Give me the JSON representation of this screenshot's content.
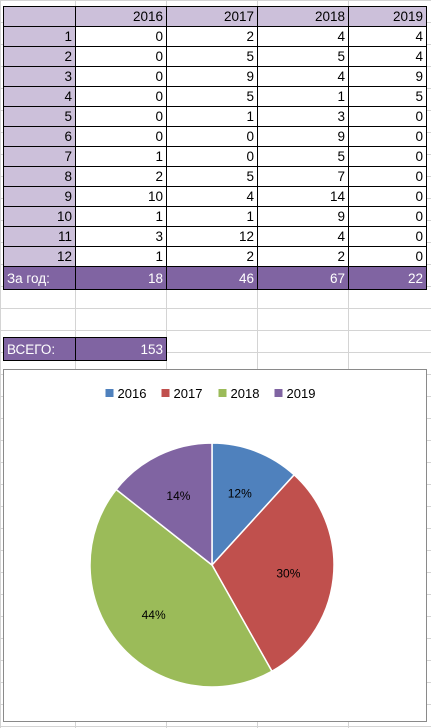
{
  "table": {
    "years": [
      "2016",
      "2017",
      "2018",
      "2019"
    ],
    "rows": [
      {
        "month": "1",
        "values": [
          "0",
          "2",
          "4",
          "4"
        ]
      },
      {
        "month": "2",
        "values": [
          "0",
          "5",
          "5",
          "4"
        ]
      },
      {
        "month": "3",
        "values": [
          "0",
          "9",
          "4",
          "9"
        ]
      },
      {
        "month": "4",
        "values": [
          "0",
          "5",
          "1",
          "5"
        ]
      },
      {
        "month": "5",
        "values": [
          "0",
          "1",
          "3",
          "0"
        ]
      },
      {
        "month": "6",
        "values": [
          "0",
          "0",
          "9",
          "0"
        ]
      },
      {
        "month": "7",
        "values": [
          "1",
          "0",
          "5",
          "0"
        ]
      },
      {
        "month": "8",
        "values": [
          "2",
          "5",
          "7",
          "0"
        ]
      },
      {
        "month": "9",
        "values": [
          "10",
          "4",
          "14",
          "0"
        ]
      },
      {
        "month": "10",
        "values": [
          "1",
          "1",
          "9",
          "0"
        ]
      },
      {
        "month": "11",
        "values": [
          "3",
          "12",
          "4",
          "0"
        ]
      },
      {
        "month": "12",
        "values": [
          "1",
          "2",
          "2",
          "0"
        ]
      }
    ],
    "total_label": "За год:",
    "totals": [
      "18",
      "46",
      "67",
      "22"
    ]
  },
  "grand_total": {
    "label": "ВСЕГО:",
    "value": "153"
  },
  "colors": {
    "header_fill": "#ccc0da",
    "total_fill": "#8064a2"
  },
  "chart_data": {
    "type": "pie",
    "title": "",
    "legend_position": "top",
    "categories": [
      "2016",
      "2017",
      "2018",
      "2019"
    ],
    "values": [
      18,
      46,
      67,
      22
    ],
    "labels": [
      "12%",
      "30%",
      "44%",
      "14%"
    ],
    "colors": [
      "#4f81bd",
      "#c0504d",
      "#9bbb59",
      "#8064a2"
    ]
  }
}
